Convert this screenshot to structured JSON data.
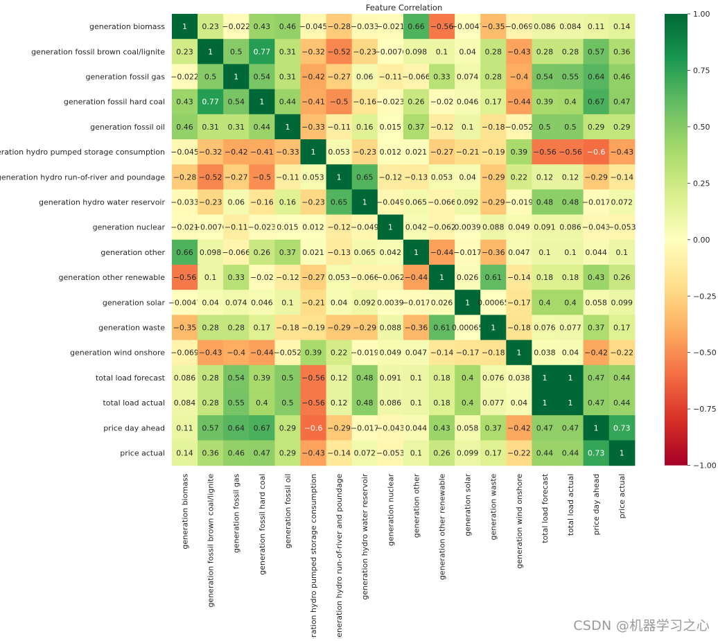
{
  "chart_data": {
    "type": "heatmap",
    "title": "Feature Correlation",
    "row_labels": [
      "generation biomass",
      "generation fossil brown coal/lignite",
      "generation fossil gas",
      "generation fossil hard coal",
      "generation fossil oil",
      "generation hydro pumped storage consumption",
      "generation hydro run-of-river and poundage",
      "generation hydro water reservoir",
      "generation nuclear",
      "generation other",
      "generation other renewable",
      "generation solar",
      "generation waste",
      "generation wind onshore",
      "total load forecast",
      "total load actual",
      "price day ahead",
      "price actual"
    ],
    "col_labels": [
      "generation biomass",
      "generation fossil brown coal/lignite",
      "generation fossil gas",
      "generation fossil hard coal",
      "generation fossil oil",
      "generation hydro pumped storage consumption",
      "generation hydro run-of-river and poundage",
      "generation hydro water reservoir",
      "generation nuclear",
      "generation other",
      "generation other renewable",
      "generation solar",
      "generation waste",
      "generation wind onshore",
      "total load forecast",
      "total load actual",
      "price day ahead",
      "price actual"
    ],
    "values": [
      [
        1,
        0.23,
        -0.022,
        0.43,
        0.46,
        -0.045,
        -0.28,
        -0.033,
        -0.021,
        0.66,
        -0.56,
        -0.0047,
        -0.35,
        -0.069,
        0.086,
        0.084,
        0.11,
        0.14
      ],
      [
        0.23,
        1,
        0.5,
        0.77,
        0.31,
        -0.32,
        -0.52,
        -0.23,
        -0.0076,
        0.098,
        0.1,
        0.04,
        0.28,
        -0.43,
        0.28,
        0.28,
        0.57,
        0.36
      ],
      [
        -0.022,
        0.5,
        1,
        0.54,
        0.31,
        -0.42,
        -0.27,
        0.06,
        -0.11,
        -0.066,
        0.33,
        0.074,
        0.28,
        -0.4,
        0.54,
        0.55,
        0.64,
        0.46
      ],
      [
        0.43,
        0.77,
        0.54,
        1,
        0.44,
        -0.41,
        -0.5,
        -0.16,
        -0.023,
        0.26,
        -0.02,
        0.046,
        0.17,
        -0.44,
        0.39,
        0.4,
        0.67,
        0.47
      ],
      [
        0.46,
        0.31,
        0.31,
        0.44,
        1,
        -0.33,
        -0.11,
        0.16,
        0.015,
        0.37,
        -0.12,
        0.1,
        -0.18,
        -0.052,
        0.5,
        0.5,
        0.29,
        0.29
      ],
      [
        -0.045,
        -0.32,
        -0.42,
        -0.41,
        -0.33,
        1,
        0.053,
        -0.23,
        0.012,
        0.021,
        -0.27,
        -0.21,
        -0.19,
        0.39,
        -0.56,
        -0.56,
        -0.6,
        -0.43
      ],
      [
        -0.28,
        -0.52,
        -0.27,
        -0.5,
        -0.11,
        0.053,
        1,
        0.65,
        -0.12,
        -0.13,
        0.053,
        0.04,
        -0.29,
        0.22,
        0.12,
        0.12,
        -0.29,
        -0.14
      ],
      [
        -0.033,
        -0.23,
        0.06,
        -0.16,
        0.16,
        -0.23,
        0.65,
        1,
        -0.049,
        0.065,
        -0.066,
        0.092,
        -0.29,
        -0.019,
        0.48,
        0.48,
        -0.017,
        0.072
      ],
      [
        -0.021,
        -0.0076,
        -0.11,
        -0.023,
        0.015,
        0.012,
        -0.12,
        -0.049,
        1,
        0.042,
        -0.062,
        0.0039,
        0.088,
        0.049,
        0.091,
        0.086,
        -0.043,
        -0.053
      ],
      [
        0.66,
        0.098,
        -0.066,
        0.26,
        0.37,
        0.021,
        -0.13,
        0.065,
        0.042,
        1,
        -0.44,
        -0.017,
        -0.36,
        0.047,
        0.1,
        0.1,
        0.044,
        0.1
      ],
      [
        -0.56,
        0.1,
        0.33,
        -0.02,
        -0.12,
        -0.27,
        0.053,
        -0.066,
        -0.062,
        -0.44,
        1,
        0.026,
        0.61,
        -0.14,
        0.18,
        0.18,
        0.43,
        0.26
      ],
      [
        -0.0047,
        0.04,
        0.074,
        0.046,
        0.1,
        -0.21,
        0.04,
        0.092,
        0.0039,
        -0.017,
        0.026,
        1,
        0.00065,
        -0.17,
        0.4,
        0.4,
        0.058,
        0.099
      ],
      [
        -0.35,
        0.28,
        0.28,
        0.17,
        -0.18,
        -0.19,
        -0.29,
        -0.29,
        0.088,
        -0.36,
        0.61,
        0.00065,
        1,
        -0.18,
        0.076,
        0.077,
        0.37,
        0.17
      ],
      [
        -0.069,
        -0.43,
        -0.4,
        -0.44,
        -0.052,
        0.39,
        0.22,
        -0.019,
        0.049,
        0.047,
        -0.14,
        -0.17,
        -0.18,
        1,
        0.038,
        0.04,
        -0.42,
        -0.22
      ],
      [
        0.086,
        0.28,
        0.54,
        0.39,
        0.5,
        -0.56,
        0.12,
        0.48,
        0.091,
        0.1,
        0.18,
        0.4,
        0.076,
        0.038,
        1,
        1,
        0.47,
        0.44
      ],
      [
        0.084,
        0.28,
        0.55,
        0.4,
        0.5,
        -0.56,
        0.12,
        0.48,
        0.086,
        0.1,
        0.18,
        0.4,
        0.077,
        0.04,
        1,
        1,
        0.47,
        0.44
      ],
      [
        0.11,
        0.57,
        0.64,
        0.67,
        0.29,
        -0.6,
        -0.29,
        -0.017,
        -0.043,
        0.044,
        0.43,
        0.058,
        0.37,
        -0.42,
        0.47,
        0.47,
        1,
        0.73
      ],
      [
        0.14,
        0.36,
        0.46,
        0.47,
        0.29,
        -0.43,
        -0.14,
        0.072,
        -0.053,
        0.1,
        0.26,
        0.099,
        0.17,
        -0.22,
        0.44,
        0.44,
        0.73,
        1
      ]
    ],
    "value_range": [
      -1,
      1
    ],
    "colormap": "RdYlGn",
    "colorbar": {
      "ticks": [
        1.0,
        0.75,
        0.5,
        0.25,
        0.0,
        -0.25,
        -0.5,
        -0.75,
        -1.0
      ],
      "tick_labels": [
        "1.00",
        "0.75",
        "0.50",
        "0.25",
        "0.00",
        "−0.25",
        "−0.50",
        "−0.75",
        "−1.00"
      ]
    },
    "grid": false,
    "annotated": true
  },
  "watermark": "CSDN @机器学习之心"
}
